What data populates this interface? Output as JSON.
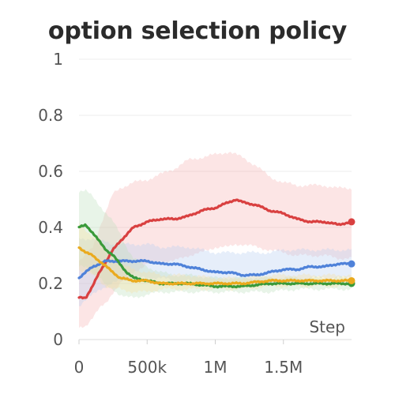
{
  "chart_data": {
    "type": "line",
    "title": "option selection policy",
    "xlabel": "Step",
    "ylabel": "",
    "xlim": [
      0,
      2000000
    ],
    "ylim": [
      0,
      1
    ],
    "x_ticks": [
      0,
      500000,
      1000000,
      1500000
    ],
    "x_tick_labels": [
      "0",
      "500k",
      "1M",
      "1.5M"
    ],
    "y_ticks": [
      0,
      0.2,
      0.4,
      0.6,
      0.8,
      1
    ],
    "y_tick_labels": [
      "0",
      "0.2",
      "0.4",
      "0.6",
      "0.8",
      "1"
    ],
    "grid": "horizontal",
    "legend": "none",
    "series": [
      {
        "color": "#d94040",
        "band_color": "#f5b5b5",
        "x": [
          0,
          50000,
          100000,
          150000,
          200000,
          250000,
          300000,
          400000,
          500000,
          600000,
          700000,
          800000,
          900000,
          1000000,
          1100000,
          1150000,
          1200000,
          1300000,
          1400000,
          1500000,
          1600000,
          1700000,
          1800000,
          1900000,
          2000000
        ],
        "y": [
          0.15,
          0.15,
          0.19,
          0.24,
          0.28,
          0.32,
          0.35,
          0.4,
          0.42,
          0.43,
          0.43,
          0.44,
          0.46,
          0.47,
          0.49,
          0.5,
          0.49,
          0.48,
          0.46,
          0.45,
          0.43,
          0.42,
          0.42,
          0.41,
          0.42
        ],
        "lower": [
          0.04,
          0.05,
          0.08,
          0.11,
          0.13,
          0.17,
          0.2,
          0.24,
          0.27,
          0.28,
          0.28,
          0.3,
          0.31,
          0.33,
          0.33,
          0.34,
          0.34,
          0.33,
          0.32,
          0.31,
          0.3,
          0.3,
          0.3,
          0.29,
          0.29
        ],
        "upper": [
          0.28,
          0.3,
          0.33,
          0.4,
          0.46,
          0.52,
          0.54,
          0.56,
          0.57,
          0.59,
          0.61,
          0.64,
          0.65,
          0.66,
          0.67,
          0.66,
          0.65,
          0.62,
          0.58,
          0.56,
          0.55,
          0.55,
          0.55,
          0.54,
          0.54
        ]
      },
      {
        "color": "#4f82d9",
        "band_color": "#b6cdf0",
        "x": [
          0,
          50000,
          100000,
          150000,
          200000,
          250000,
          300000,
          400000,
          500000,
          600000,
          700000,
          800000,
          900000,
          1000000,
          1100000,
          1200000,
          1300000,
          1400000,
          1500000,
          1600000,
          1700000,
          1800000,
          1900000,
          2000000
        ],
        "y": [
          0.22,
          0.24,
          0.26,
          0.27,
          0.28,
          0.28,
          0.28,
          0.28,
          0.28,
          0.27,
          0.27,
          0.26,
          0.25,
          0.24,
          0.24,
          0.23,
          0.23,
          0.24,
          0.25,
          0.25,
          0.26,
          0.26,
          0.27,
          0.27
        ],
        "lower": [
          0.12,
          0.14,
          0.16,
          0.18,
          0.19,
          0.2,
          0.21,
          0.22,
          0.22,
          0.22,
          0.21,
          0.21,
          0.2,
          0.2,
          0.2,
          0.2,
          0.2,
          0.2,
          0.21,
          0.21,
          0.22,
          0.22,
          0.22,
          0.22
        ],
        "upper": [
          0.36,
          0.36,
          0.36,
          0.35,
          0.35,
          0.34,
          0.34,
          0.34,
          0.34,
          0.33,
          0.33,
          0.33,
          0.32,
          0.31,
          0.31,
          0.31,
          0.31,
          0.31,
          0.32,
          0.32,
          0.32,
          0.32,
          0.32,
          0.32
        ]
      },
      {
        "color": "#3a9a3a",
        "band_color": "#bde0bd",
        "x": [
          0,
          50000,
          100000,
          150000,
          200000,
          250000,
          300000,
          350000,
          400000,
          500000,
          600000,
          700000,
          800000,
          1000000,
          1200000,
          1400000,
          1600000,
          1800000,
          2000000
        ],
        "y": [
          0.4,
          0.41,
          0.38,
          0.35,
          0.32,
          0.3,
          0.27,
          0.24,
          0.22,
          0.21,
          0.2,
          0.2,
          0.2,
          0.19,
          0.19,
          0.2,
          0.2,
          0.2,
          0.2
        ],
        "lower": [
          0.26,
          0.26,
          0.24,
          0.22,
          0.19,
          0.18,
          0.16,
          0.15,
          0.15,
          0.16,
          0.17,
          0.17,
          0.17,
          0.17,
          0.17,
          0.17,
          0.18,
          0.18,
          0.18
        ],
        "upper": [
          0.53,
          0.53,
          0.51,
          0.48,
          0.45,
          0.42,
          0.38,
          0.33,
          0.29,
          0.26,
          0.24,
          0.23,
          0.23,
          0.22,
          0.22,
          0.22,
          0.22,
          0.22,
          0.22
        ]
      },
      {
        "color": "#eaaa1e",
        "band_color": "#f6dfa0",
        "x": [
          0,
          50000,
          100000,
          150000,
          200000,
          250000,
          300000,
          400000,
          500000,
          600000,
          700000,
          800000,
          1000000,
          1200000,
          1400000,
          1600000,
          1800000,
          2000000
        ],
        "y": [
          0.33,
          0.31,
          0.3,
          0.28,
          0.26,
          0.24,
          0.22,
          0.21,
          0.21,
          0.2,
          0.2,
          0.2,
          0.2,
          0.2,
          0.21,
          0.21,
          0.21,
          0.21
        ],
        "lower": [
          0.25,
          0.24,
          0.23,
          0.21,
          0.19,
          0.18,
          0.18,
          0.17,
          0.17,
          0.18,
          0.18,
          0.18,
          0.18,
          0.18,
          0.19,
          0.19,
          0.19,
          0.19
        ],
        "upper": [
          0.41,
          0.39,
          0.37,
          0.35,
          0.32,
          0.3,
          0.27,
          0.25,
          0.24,
          0.23,
          0.23,
          0.23,
          0.22,
          0.22,
          0.23,
          0.23,
          0.23,
          0.23
        ]
      }
    ]
  }
}
